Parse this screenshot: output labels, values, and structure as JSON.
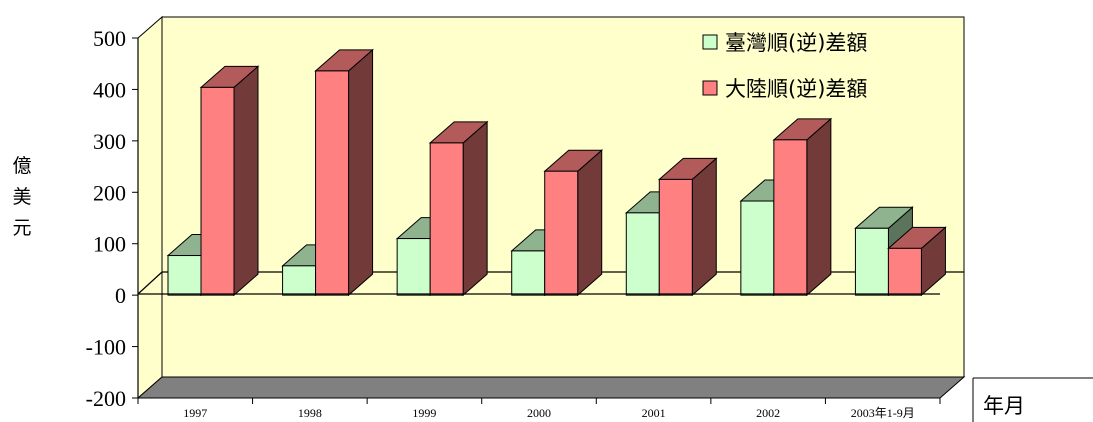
{
  "chart_data": {
    "type": "bar",
    "categories": [
      "1997",
      "1998",
      "1999",
      "2000",
      "2001",
      "2002",
      "2003年1-9月"
    ],
    "series": [
      {
        "name": "臺灣順(逆)差額",
        "values": [
          77,
          57,
          110,
          86,
          160,
          183,
          130
        ],
        "color": "#ccffcc"
      },
      {
        "name": "大陸順(逆)差額",
        "values": [
          404,
          436,
          296,
          241,
          225,
          302,
          91
        ],
        "color": "#ff8080"
      }
    ],
    "ylim": [
      -200,
      500
    ],
    "yticks": [
      "500",
      "400",
      "300",
      "200",
      "100",
      "0",
      "-100",
      "-200"
    ],
    "ylabel": "億美元",
    "xlabel": "年月",
    "legend_position": "top-right",
    "wall_color": "#ffffcc",
    "floor_color": "#808080",
    "grid": false
  }
}
